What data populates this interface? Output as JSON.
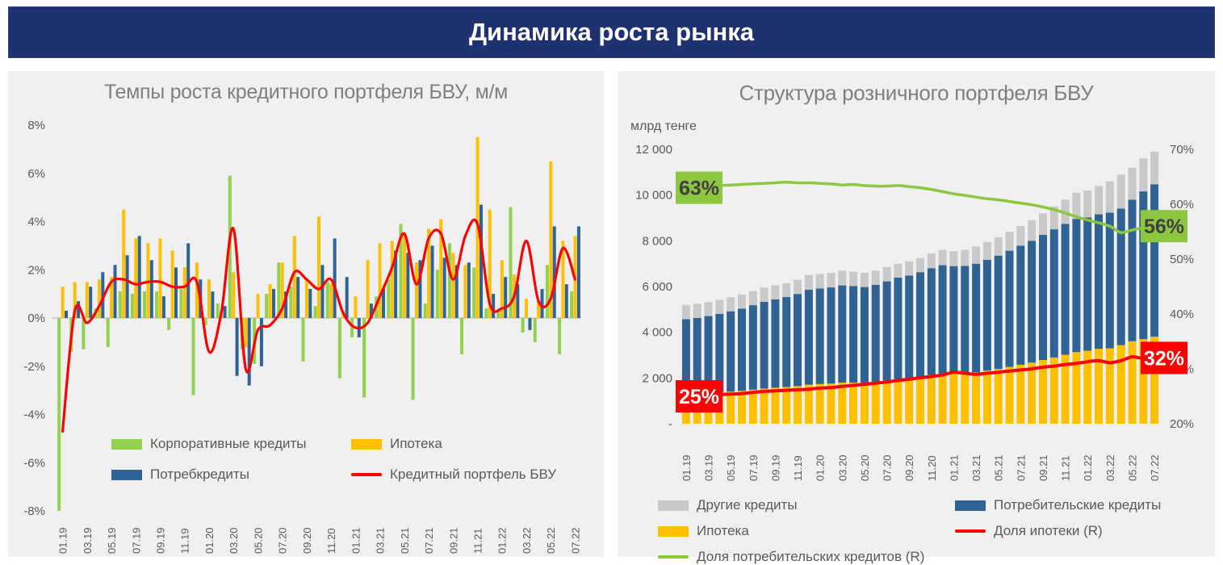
{
  "header": {
    "title": "Динамика роста рынка"
  },
  "left_panel": {
    "title": "Темпы роста кредитного портфеля БВУ, м/м",
    "legend": {
      "corporate": "Корпоративные кредиты",
      "consumer": "Потребкредиты",
      "mortgage": "Ипотека",
      "portfolio": "Кредитный портфель БВУ"
    }
  },
  "right_panel": {
    "title": "Структура розничного портфеля БВУ",
    "unit_label": "млрд тенге",
    "legend": {
      "other": "Другие кредиты",
      "consumer": "Потребительские кредиты",
      "mortgage": "Ипотека",
      "mortgage_share": "Доля ипотеки (R)",
      "consumer_share": "Доля потребительских кредитов (R)"
    }
  },
  "colors": {
    "header_bg": "#1f3170",
    "panel_bg": "#f0f0f0",
    "title_text": "#7f7f7f",
    "axis_text": "#595959",
    "corporate_green": "#92d050",
    "consumer_blue": "#2e6394",
    "mortgage_yellow": "#ffc000",
    "portfolio_red": "#ff0000",
    "other_gray": "#c9c9c9",
    "share_green_line": "#8dc63f",
    "zero_line": "#c6c6c6",
    "annotation_dark_text": "#404040",
    "annotation_light_text": "#ffffff"
  },
  "chart_data": [
    {
      "id": "credit-portfolio-growth",
      "type": "bar",
      "title": "Темпы роста кредитного портфеля БВУ, м/м",
      "x": [
        "01.19",
        "02.19",
        "03.19",
        "04.19",
        "05.19",
        "06.19",
        "07.19",
        "08.19",
        "09.19",
        "10.19",
        "11.19",
        "12.19",
        "01.20",
        "02.20",
        "03.20",
        "04.20",
        "05.20",
        "06.20",
        "07.20",
        "08.20",
        "09.20",
        "10.20",
        "11.20",
        "12.20",
        "01.21",
        "02.21",
        "03.21",
        "04.21",
        "05.21",
        "06.21",
        "07.21",
        "08.21",
        "09.21",
        "10.21",
        "11.21",
        "12.21",
        "01.22",
        "02.22",
        "03.22",
        "04.22",
        "05.22",
        "06.22",
        "07.22"
      ],
      "x_tick_labels": [
        "01.19",
        "03.19",
        "05.19",
        "07.19",
        "09.19",
        "11.19",
        "01.20",
        "03.20",
        "05.20",
        "07.20",
        "09.20",
        "11.20",
        "01.21",
        "03.21",
        "05.21",
        "07.21",
        "09.21",
        "11.21",
        "01.22",
        "03.22",
        "05.22",
        "07.22"
      ],
      "ylim": [
        -8,
        8
      ],
      "y_ticks": [
        "8%",
        "6%",
        "4%",
        "2%",
        "0%",
        "-2%",
        "-4%",
        "-6%",
        "-8%"
      ],
      "grid": "zero-line-only",
      "legend_position": "inside-bottom",
      "series": [
        {
          "name": "Корпоративные кредиты",
          "type": "bar",
          "color": "#92d050",
          "values": [
            -8.0,
            -1.4,
            -1.3,
            0.4,
            -1.2,
            1.1,
            1.0,
            1.1,
            1.1,
            -0.5,
            1.2,
            -3.2,
            -0.3,
            0.6,
            5.9,
            -1.3,
            -1.9,
            1.0,
            2.3,
            1.3,
            -1.8,
            0.5,
            1.5,
            -2.5,
            -0.8,
            -3.3,
            0.9,
            1.6,
            3.9,
            -3.4,
            0.6,
            2.0,
            3.1,
            -1.5,
            2.1,
            0.4,
            0.3,
            4.6,
            -0.6,
            -1.0,
            2.2,
            -1.5,
            1.1
          ]
        },
        {
          "name": "Ипотека",
          "type": "bar",
          "color": "#ffc000",
          "values": [
            1.3,
            1.5,
            1.5,
            1.6,
            1.7,
            4.5,
            3.3,
            3.1,
            3.3,
            2.8,
            2.1,
            2.3,
            1.6,
            0.3,
            1.9,
            -1.2,
            1.0,
            1.4,
            2.3,
            3.4,
            1.6,
            4.2,
            1.4,
            0.3,
            0.9,
            2.4,
            3.1,
            3.2,
            3.5,
            2.3,
            3.7,
            4.1,
            2.7,
            2.2,
            7.5,
            4.5,
            2.4,
            1.8,
            0.8,
            0.7,
            6.5,
            3.2,
            3.4
          ]
        },
        {
          "name": "Потребкредиты",
          "type": "bar",
          "color": "#2e6394",
          "values": [
            0.3,
            0.7,
            1.3,
            1.9,
            2.2,
            2.6,
            3.4,
            2.4,
            0.9,
            2.1,
            3.1,
            1.6,
            1.1,
            0.5,
            -2.4,
            -2.8,
            -2.0,
            1.2,
            1.1,
            1.7,
            1.2,
            2.2,
            3.3,
            1.7,
            -0.8,
            0.6,
            1.2,
            2.8,
            2.7,
            2.4,
            3.0,
            2.5,
            2.2,
            2.3,
            4.7,
            1.0,
            1.7,
            1.4,
            -0.5,
            1.2,
            3.8,
            1.4,
            3.8
          ]
        },
        {
          "name": "Кредитный портфель БВУ",
          "type": "line",
          "color": "#ff0000",
          "values": [
            -4.7,
            0.3,
            -0.2,
            0.5,
            1.5,
            1.6,
            1.4,
            1.5,
            1.5,
            1.3,
            1.3,
            1.5,
            -1.4,
            0.2,
            3.7,
            -2.1,
            -0.5,
            -0.3,
            0.4,
            1.9,
            1.6,
            1.2,
            1.6,
            0.2,
            -0.4,
            -0.2,
            0.9,
            2.1,
            3.5,
            1.4,
            3.3,
            3.5,
            1.6,
            3.4,
            3.9,
            0.6,
            0.4,
            0.9,
            3.2,
            0.7,
            0.8,
            2.9,
            1.6
          ]
        }
      ]
    },
    {
      "id": "retail-portfolio-structure",
      "type": "stacked-bar+line",
      "title": "Структура розничного портфеля БВУ",
      "unit": "млрд тенге",
      "x": [
        "01.19",
        "02.19",
        "03.19",
        "04.19",
        "05.19",
        "06.19",
        "07.19",
        "08.19",
        "09.19",
        "10.19",
        "11.19",
        "12.19",
        "01.20",
        "02.20",
        "03.20",
        "04.20",
        "05.20",
        "06.20",
        "07.20",
        "08.20",
        "09.20",
        "10.20",
        "11.20",
        "12.20",
        "01.21",
        "02.21",
        "03.21",
        "04.21",
        "05.21",
        "06.21",
        "07.21",
        "08.21",
        "09.21",
        "10.21",
        "11.21",
        "12.21",
        "01.22",
        "02.22",
        "03.22",
        "04.22",
        "05.22",
        "06.22",
        "07.22"
      ],
      "x_tick_labels": [
        "01.19",
        "03.19",
        "05.19",
        "07.19",
        "09.19",
        "11.19",
        "01.20",
        "03.20",
        "05.20",
        "07.20",
        "09.20",
        "11.20",
        "01.21",
        "03.21",
        "05.21",
        "07.21",
        "09.21",
        "11.21",
        "01.22",
        "03.22",
        "05.22",
        "07.22"
      ],
      "ylim_left": [
        0,
        12000
      ],
      "y_ticks_left": [
        "12 000",
        "10 000",
        "8 000",
        "6 000",
        "4 000",
        "2 000",
        "-"
      ],
      "ylim_right": [
        20,
        70
      ],
      "y_ticks_right": [
        "70%",
        "60%",
        "50%",
        "40%",
        "30%",
        "20%"
      ],
      "stack_order": [
        "Ипотека",
        "Потребительские кредиты",
        "Другие кредиты"
      ],
      "stack_colors": {
        "Ипотека": "#ffc000",
        "Потребительские кредиты": "#2e6394",
        "Другие кредиты": "#c9c9c9"
      },
      "totals_bln_tenge": [
        5200,
        5250,
        5320,
        5420,
        5530,
        5650,
        5800,
        5950,
        6050,
        6150,
        6300,
        6500,
        6550,
        6600,
        6700,
        6650,
        6600,
        6700,
        6850,
        7000,
        7100,
        7250,
        7450,
        7600,
        7550,
        7600,
        7750,
        7950,
        8150,
        8400,
        8650,
        8900,
        9200,
        9500,
        9800,
        10100,
        10200,
        10400,
        10600,
        10900,
        11200,
        11600,
        11900
      ],
      "mortgage_share_pct": [
        25.0,
        25.1,
        25.2,
        25.3,
        25.4,
        25.5,
        25.7,
        25.9,
        26.0,
        26.1,
        26.2,
        26.3,
        26.5,
        26.6,
        26.8,
        27.0,
        27.2,
        27.4,
        27.6,
        27.9,
        28.1,
        28.4,
        28.6,
        28.9,
        29.4,
        29.2,
        29.0,
        29.2,
        29.4,
        29.6,
        29.8,
        30.0,
        30.3,
        30.5,
        30.8,
        31.0,
        31.3,
        31.5,
        31.1,
        31.5,
        32.2,
        31.9,
        32.0
      ],
      "consumer_share_pct": [
        63.0,
        63.1,
        63.3,
        63.4,
        63.5,
        63.6,
        63.7,
        63.8,
        63.9,
        64.0,
        63.9,
        63.9,
        63.8,
        63.7,
        63.5,
        63.6,
        63.4,
        63.3,
        63.3,
        63.4,
        63.2,
        63.0,
        62.7,
        62.3,
        61.9,
        61.6,
        61.3,
        61.0,
        60.8,
        60.5,
        60.2,
        59.9,
        59.5,
        59.0,
        58.4,
        57.7,
        57.1,
        56.6,
        56.0,
        54.8,
        55.3,
        55.7,
        56.0
      ],
      "annotations": [
        {
          "text": "63%",
          "series": "consumer_share",
          "position": "start",
          "value": 63,
          "box_color": "#8dc63f",
          "text_color": "#404040"
        },
        {
          "text": "56%",
          "series": "consumer_share",
          "position": "end",
          "value": 56,
          "box_color": "#8dc63f",
          "text_color": "#404040"
        },
        {
          "text": "25%",
          "series": "mortgage_share",
          "position": "start",
          "value": 25,
          "box_color": "#ff0000",
          "text_color": "#ffffff"
        },
        {
          "text": "32%",
          "series": "mortgage_share",
          "position": "end",
          "value": 32,
          "box_color": "#ff0000",
          "text_color": "#ffffff"
        }
      ]
    }
  ]
}
